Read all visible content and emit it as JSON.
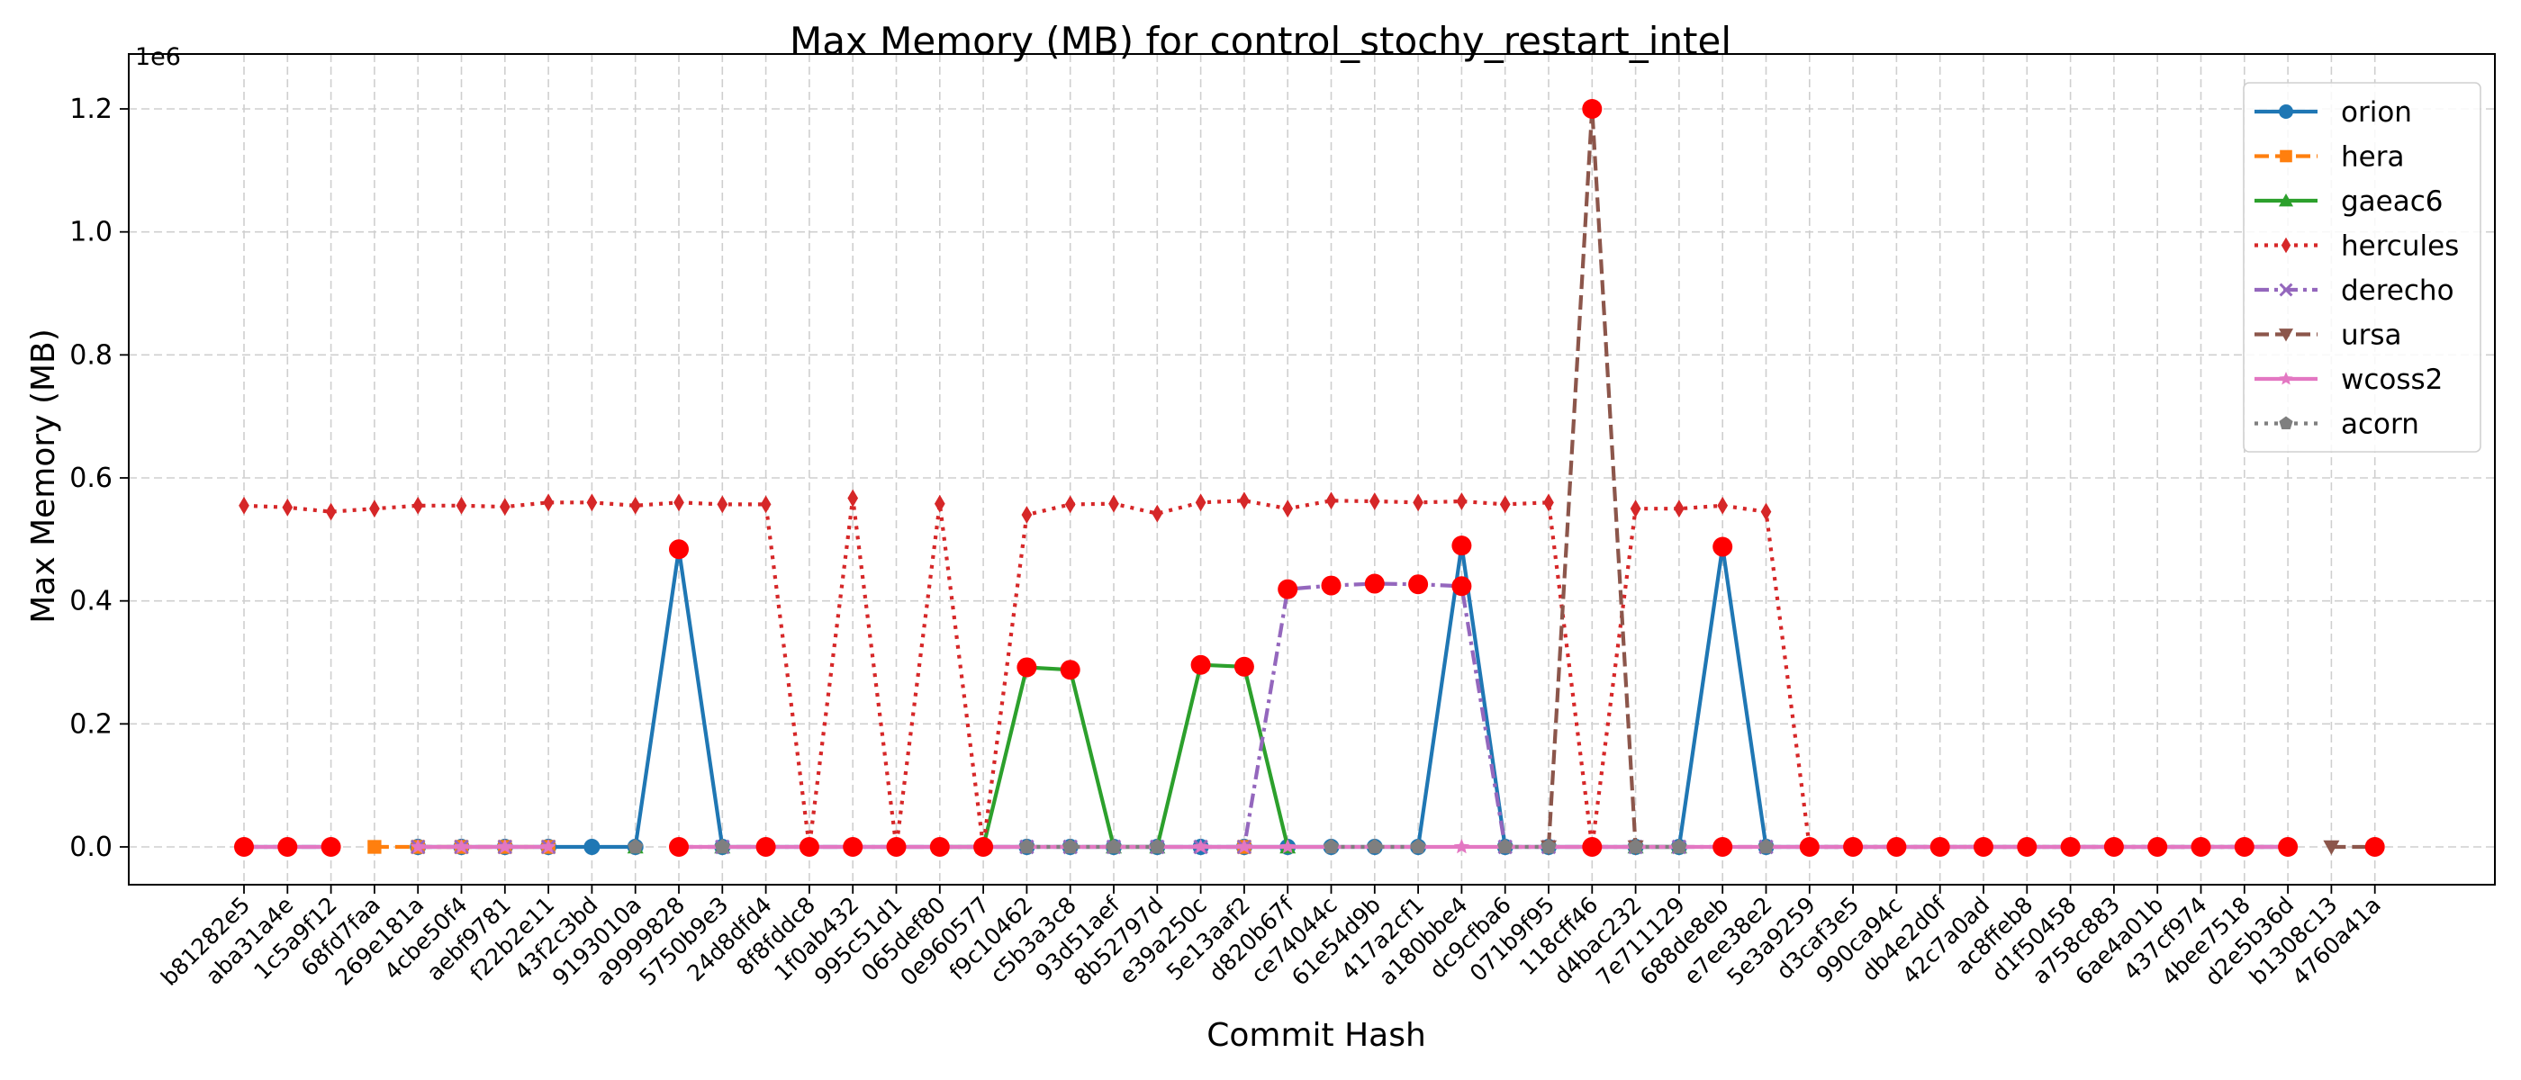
{
  "chart_data": {
    "type": "line",
    "title": "Max Memory (MB) for control_stochy_restart_intel",
    "xlabel": "Commit Hash",
    "ylabel": "Max Memory (MB)",
    "y_scale_label": "1e6",
    "ylim": [
      -0.06,
      1.26
    ],
    "yticks": [
      0.0,
      0.2,
      0.4,
      0.6,
      0.8,
      1.0,
      1.2
    ],
    "ytick_labels": [
      "0.0",
      "0.2",
      "0.4",
      "0.6",
      "0.8",
      "1.0",
      "1.2"
    ],
    "grid": true,
    "legend_position": "top-right",
    "categories": [
      "b81282e5",
      "aba31a4e",
      "1c5a9f12",
      "68fd7faa",
      "269e181a",
      "4cbe50f4",
      "aebf9781",
      "f22b2e11",
      "43f2c3bd",
      "9193010a",
      "a9999828",
      "5750b9e3",
      "24d8dfd4",
      "8f8fddc8",
      "1f0ab432",
      "995c51d1",
      "065def80",
      "0e960577",
      "f9c10462",
      "c5b3a3c8",
      "93d51aef",
      "8b52797d",
      "e39a250c",
      "5e13aaf2",
      "d820b67f",
      "ce74044c",
      "61e54d9b",
      "417a2cf1",
      "a180bbe4",
      "dc9cfba6",
      "071b9f95",
      "118cff46",
      "d4bac232",
      "7e711129",
      "688de8eb",
      "e7ee38e2",
      "5e3a9259",
      "d3caf3e5",
      "990ca94c",
      "db4e2d0f",
      "42c7a0ad",
      "ac8ffeb8",
      "d1f50458",
      "a758c883",
      "6ae4a01b",
      "437cf974",
      "4bee7518",
      "d2e5b36d",
      "b1308c13",
      "4760a41a"
    ],
    "series": [
      {
        "name": "orion",
        "color": "#1f77b4",
        "marker": "circle",
        "linestyle": "solid",
        "values": [
          0,
          0,
          0,
          null,
          0,
          0,
          0,
          0,
          0,
          0,
          0.484,
          0,
          0,
          0,
          0,
          0,
          0,
          0,
          0,
          0,
          0,
          0,
          0,
          0,
          0,
          0,
          0,
          0,
          0.49,
          0,
          0,
          0,
          0,
          0,
          0.488,
          0,
          0,
          0,
          0,
          0,
          0,
          0,
          0,
          0,
          0,
          0,
          0,
          0,
          null,
          0
        ]
      },
      {
        "name": "hera",
        "color": "#ff7f0e",
        "marker": "square",
        "linestyle": "dashed",
        "values": [
          null,
          null,
          null,
          0,
          0,
          0,
          0,
          0,
          null,
          null,
          null,
          null,
          null,
          null,
          null,
          null,
          null,
          null,
          null,
          null,
          null,
          null,
          null,
          0,
          null,
          null,
          null,
          null,
          null,
          null,
          null,
          null,
          null,
          null,
          null,
          null,
          null,
          null,
          null,
          null,
          null,
          null,
          null,
          null,
          null,
          null,
          null,
          null,
          null,
          null
        ]
      },
      {
        "name": "gaeac6",
        "color": "#2ca02c",
        "marker": "triangle-up",
        "linestyle": "solid",
        "values": [
          null,
          null,
          null,
          null,
          null,
          null,
          null,
          null,
          null,
          0,
          null,
          0,
          null,
          null,
          null,
          null,
          0,
          0,
          0.292,
          0.288,
          0,
          0,
          0.296,
          0.293,
          0,
          null,
          null,
          null,
          null,
          null,
          null,
          null,
          0,
          0,
          null,
          null,
          null,
          null,
          null,
          null,
          null,
          null,
          null,
          null,
          null,
          null,
          null,
          null,
          null,
          null
        ]
      },
      {
        "name": "hercules",
        "color": "#d62728",
        "marker": "diamond",
        "linestyle": "dotted",
        "values": [
          0.555,
          0.552,
          0.545,
          0.55,
          0.555,
          0.555,
          0.553,
          0.56,
          0.56,
          0.555,
          0.56,
          0.557,
          0.557,
          0,
          0.567,
          0,
          0.558,
          0,
          0.54,
          0.557,
          0.558,
          0.542,
          0.56,
          0.563,
          0.55,
          0.563,
          0.562,
          0.56,
          0.562,
          0.557,
          0.56,
          0,
          0.55,
          0.55,
          0.555,
          0.545,
          0,
          0,
          0,
          0,
          0,
          0,
          0,
          0,
          0,
          0,
          0,
          0,
          null,
          0
        ]
      },
      {
        "name": "derecho",
        "color": "#9467bd",
        "marker": "x",
        "linestyle": "dashdot",
        "values": [
          0,
          0,
          0,
          null,
          0,
          0,
          0,
          0,
          null,
          null,
          0,
          0,
          0,
          0,
          0,
          0,
          0,
          0,
          0,
          0,
          0,
          0,
          0,
          0,
          0.419,
          0.425,
          0.428,
          0.427,
          0.424,
          0,
          0,
          0,
          0,
          0,
          0,
          0,
          0,
          0,
          0,
          0,
          0,
          0,
          0,
          0,
          0,
          0,
          0,
          0,
          null,
          0
        ]
      },
      {
        "name": "ursa",
        "color": "#8c564b",
        "marker": "triangle-down",
        "linestyle": "dashed",
        "values": [
          null,
          null,
          null,
          null,
          null,
          null,
          null,
          null,
          null,
          null,
          null,
          null,
          null,
          null,
          null,
          null,
          null,
          null,
          null,
          null,
          null,
          null,
          null,
          null,
          null,
          null,
          null,
          null,
          null,
          null,
          0,
          1.2,
          0,
          null,
          null,
          null,
          null,
          null,
          null,
          null,
          null,
          null,
          null,
          null,
          null,
          null,
          null,
          null,
          0,
          0
        ]
      },
      {
        "name": "wcoss2",
        "color": "#e377c2",
        "marker": "star",
        "linestyle": "solid",
        "values": [
          0,
          0,
          0,
          null,
          0,
          0,
          0,
          0,
          null,
          null,
          0,
          0,
          0,
          0,
          0,
          0,
          0,
          0,
          0,
          0,
          0,
          0,
          0,
          0,
          0,
          0,
          0,
          0,
          0,
          0,
          0,
          0,
          0,
          0,
          0,
          0,
          0,
          0,
          0,
          0,
          0,
          0,
          0,
          0,
          0,
          0,
          0,
          0,
          null,
          0
        ]
      },
      {
        "name": "acorn",
        "color": "#7f7f7f",
        "marker": "pentagon",
        "linestyle": "dotted",
        "values": [
          null,
          null,
          null,
          null,
          null,
          null,
          null,
          null,
          null,
          0,
          null,
          0,
          null,
          null,
          null,
          null,
          null,
          null,
          0,
          0,
          0,
          0,
          null,
          null,
          null,
          0,
          0,
          0,
          null,
          0,
          0,
          null,
          0,
          0,
          null,
          0,
          null,
          null,
          null,
          null,
          null,
          null,
          null,
          null,
          null,
          null,
          null,
          null,
          null,
          null
        ]
      }
    ],
    "highlight_points": {
      "color": "#ff0000",
      "points": [
        {
          "x": "b81282e5",
          "y": 0
        },
        {
          "x": "aba31a4e",
          "y": 0
        },
        {
          "x": "1c5a9f12",
          "y": 0
        },
        {
          "x": "a9999828",
          "y": 0.484
        },
        {
          "x": "f9c10462",
          "y": 0.292
        },
        {
          "x": "c5b3a3c8",
          "y": 0.288
        },
        {
          "x": "e39a250c",
          "y": 0.296
        },
        {
          "x": "5e13aaf2",
          "y": 0.293
        },
        {
          "x": "d820b67f",
          "y": 0.419
        },
        {
          "x": "ce74044c",
          "y": 0.425
        },
        {
          "x": "61e54d9b",
          "y": 0.428
        },
        {
          "x": "417a2cf1",
          "y": 0.427
        },
        {
          "x": "a180bbe4",
          "y": 0.49
        },
        {
          "x": "a180bbe4",
          "y": 0.424
        },
        {
          "x": "118cff46",
          "y": 1.2
        },
        {
          "x": "118cff46",
          "y": 0
        },
        {
          "x": "688de8eb",
          "y": 0.488
        },
        {
          "x": "688de8eb",
          "y": 0
        },
        {
          "x": "5e3a9259",
          "y": 0
        },
        {
          "x": "d3caf3e5",
          "y": 0
        },
        {
          "x": "990ca94c",
          "y": 0
        },
        {
          "x": "db4e2d0f",
          "y": 0
        },
        {
          "x": "42c7a0ad",
          "y": 0
        },
        {
          "x": "ac8ffeb8",
          "y": 0
        },
        {
          "x": "d1f50458",
          "y": 0
        },
        {
          "x": "a758c883",
          "y": 0
        },
        {
          "x": "6ae4a01b",
          "y": 0
        },
        {
          "x": "437cf974",
          "y": 0
        },
        {
          "x": "4bee7518",
          "y": 0
        },
        {
          "x": "d2e5b36d",
          "y": 0
        },
        {
          "x": "4760a41a",
          "y": 0
        },
        {
          "x": "a9999828",
          "y": 0
        },
        {
          "x": "24d8dfd4",
          "y": 0
        },
        {
          "x": "8f8fddc8",
          "y": 0
        },
        {
          "x": "1f0ab432",
          "y": 0
        },
        {
          "x": "995c51d1",
          "y": 0
        },
        {
          "x": "065def80",
          "y": 0
        },
        {
          "x": "0e960577",
          "y": 0
        }
      ]
    }
  }
}
